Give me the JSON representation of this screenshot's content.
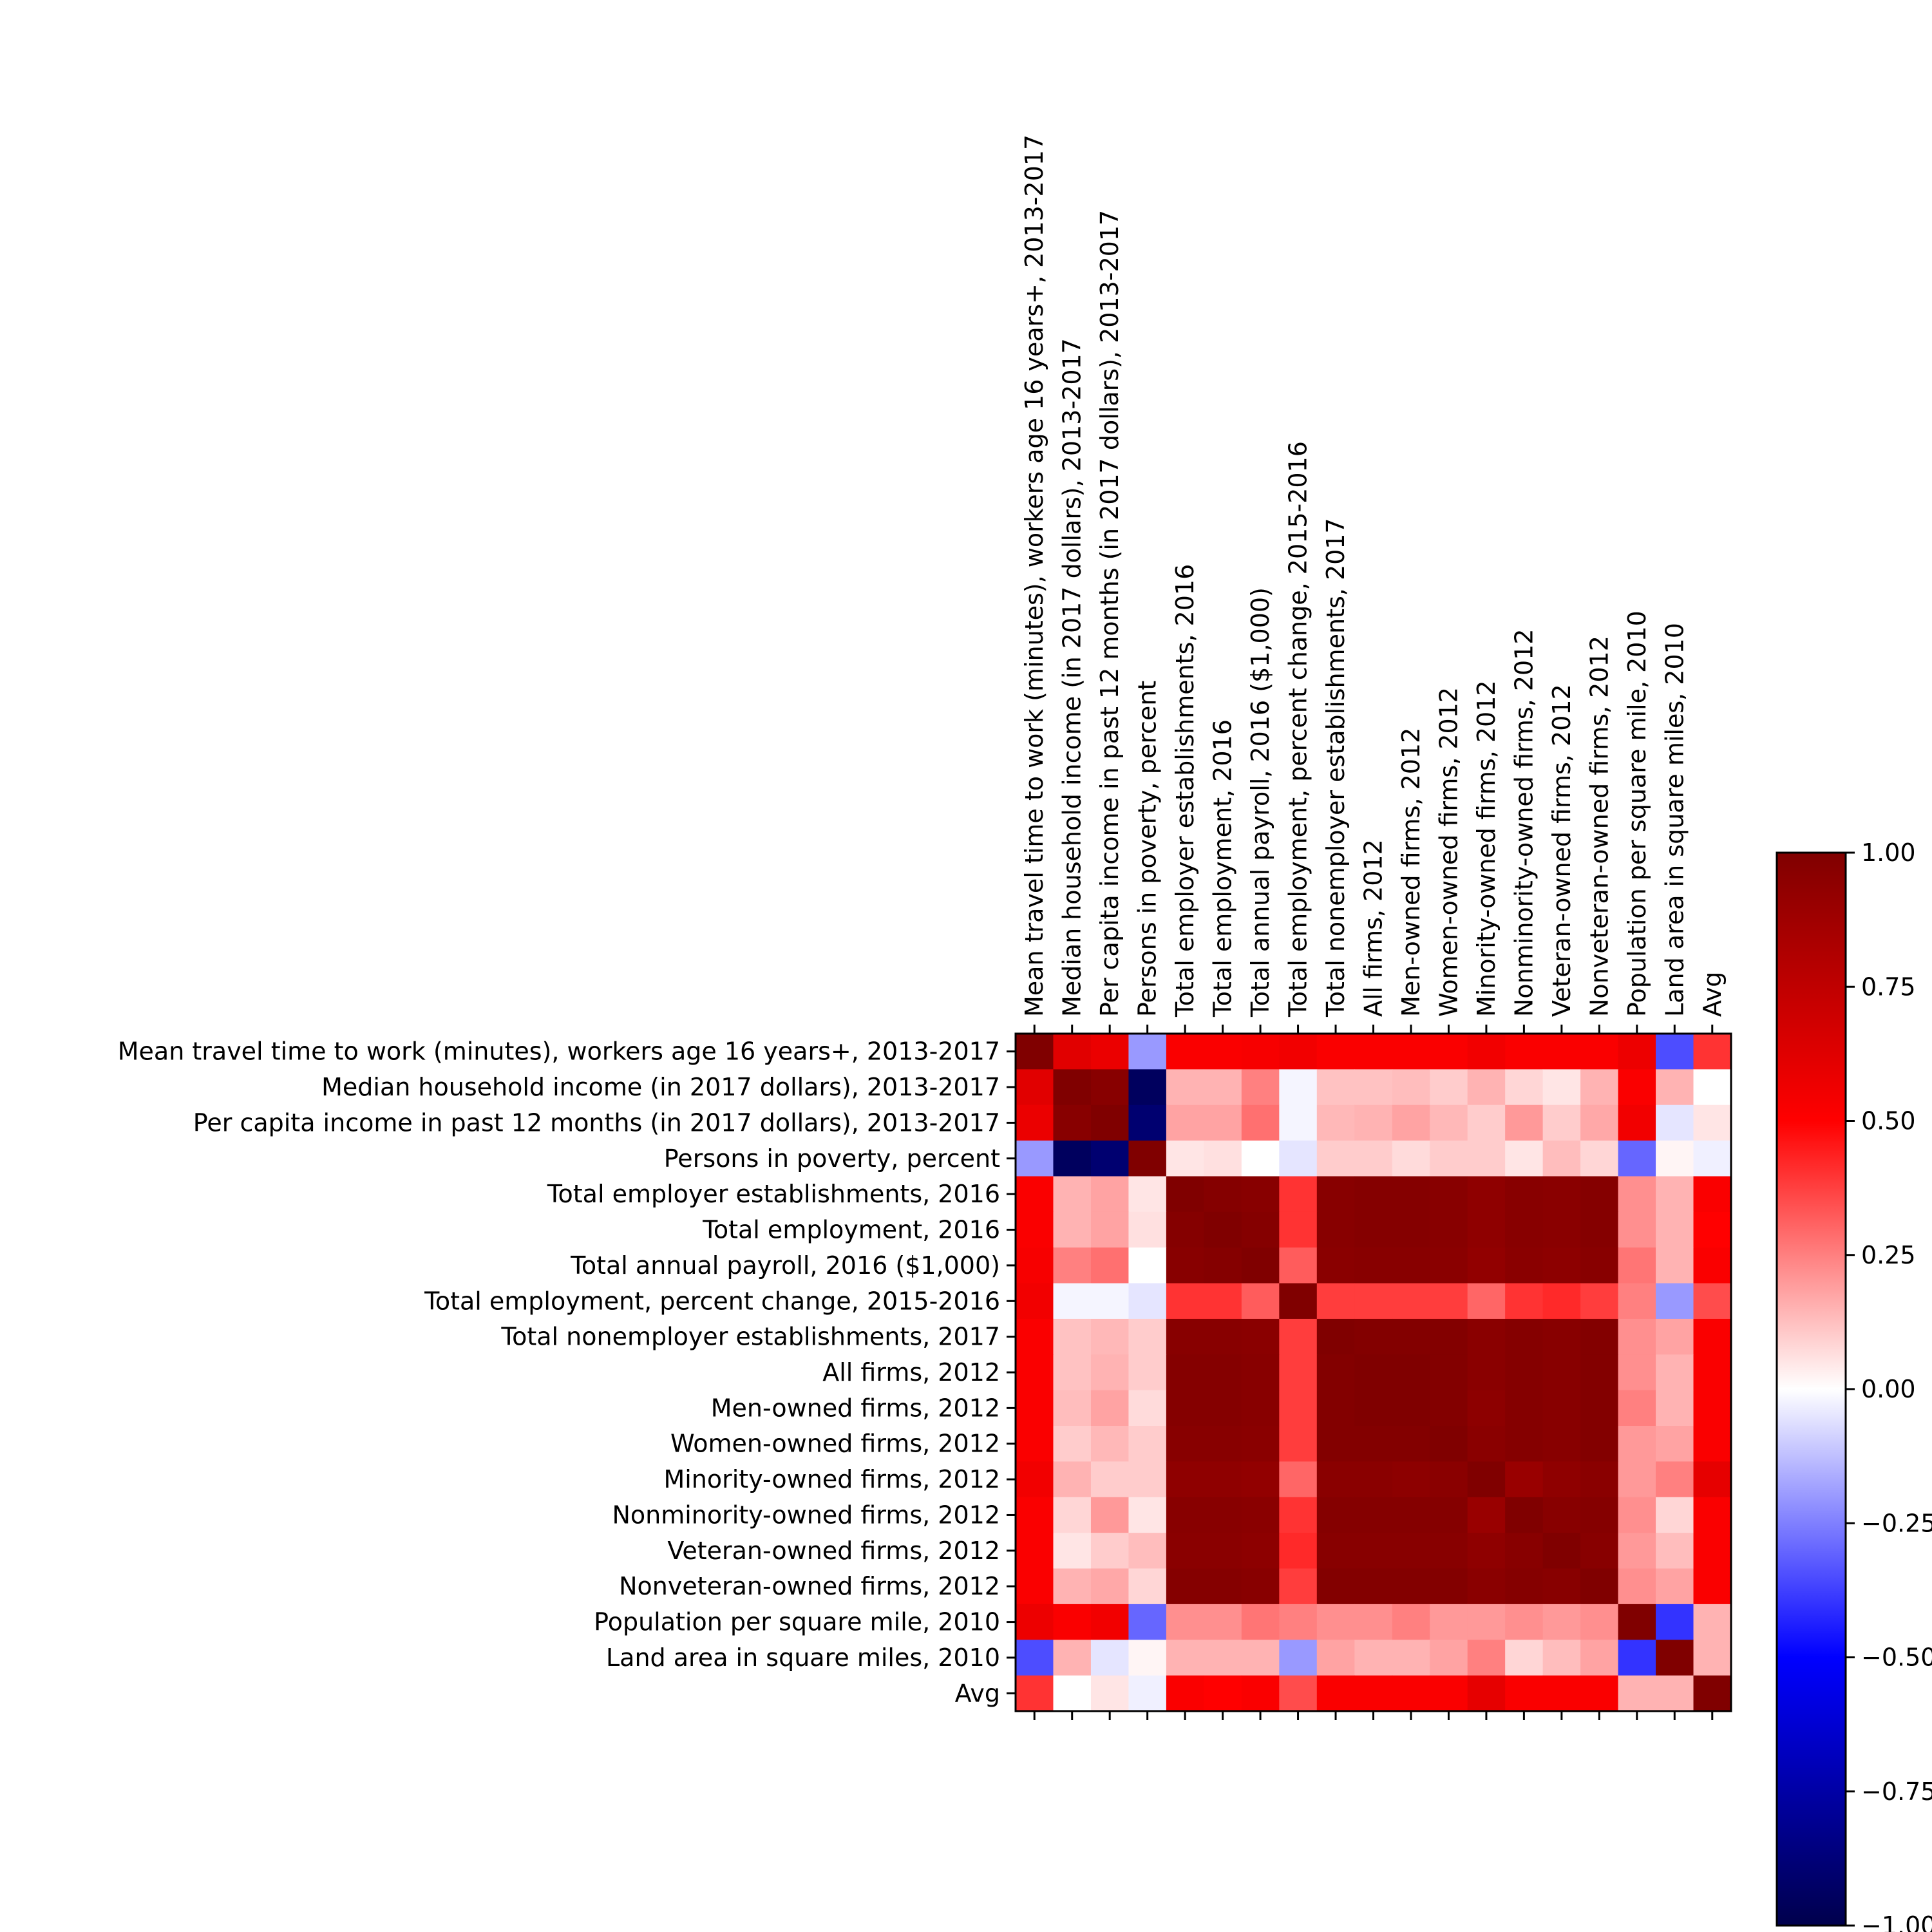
{
  "chart_data": {
    "type": "heatmap",
    "title": "",
    "xlabel": "",
    "ylabel": "",
    "labels": [
      "Mean travel time to work (minutes), workers age 16 years+, 2013-2017",
      "Median household income (in 2017 dollars), 2013-2017",
      "Per capita income in past 12 months (in 2017 dollars), 2013-2017",
      "Persons in poverty, percent",
      "Total employer establishments, 2016",
      "Total employment, 2016",
      "Total annual payroll, 2016 ($1,000)",
      "Total employment, percent change, 2015-2016",
      "Total nonemployer establishments, 2017",
      "All firms, 2012",
      "Men-owned firms, 2012",
      "Women-owned firms, 2012",
      "Minority-owned firms, 2012",
      "Nonminority-owned firms, 2012",
      "Veteran-owned firms, 2012",
      "Nonveteran-owned firms, 2012",
      "Population per square mile, 2010",
      "Land area in square miles, 2010",
      "Avg"
    ],
    "values": [
      [
        1.0,
        0.62,
        0.58,
        -0.2,
        0.52,
        0.52,
        0.53,
        0.55,
        0.52,
        0.52,
        0.52,
        0.52,
        0.55,
        0.52,
        0.52,
        0.52,
        0.57,
        -0.35,
        0.4
      ],
      [
        0.62,
        1.0,
        0.97,
        -0.95,
        0.15,
        0.15,
        0.25,
        -0.02,
        0.12,
        0.12,
        0.13,
        0.1,
        0.15,
        0.08,
        0.05,
        0.15,
        0.52,
        0.15,
        0.0
      ],
      [
        0.58,
        0.97,
        1.0,
        -0.9,
        0.18,
        0.18,
        0.28,
        -0.02,
        0.14,
        0.15,
        0.18,
        0.14,
        0.1,
        0.2,
        0.1,
        0.17,
        0.55,
        -0.05,
        0.05
      ],
      [
        -0.2,
        -0.95,
        -0.9,
        1.0,
        0.05,
        0.06,
        0.0,
        -0.05,
        0.1,
        0.1,
        0.07,
        0.1,
        0.1,
        0.05,
        0.13,
        0.08,
        -0.3,
        0.02,
        -0.03
      ],
      [
        0.52,
        0.15,
        0.18,
        0.05,
        1.0,
        0.98,
        0.97,
        0.4,
        0.97,
        0.98,
        0.98,
        0.97,
        0.94,
        0.97,
        0.96,
        0.98,
        0.22,
        0.15,
        0.52
      ],
      [
        0.52,
        0.15,
        0.18,
        0.06,
        0.98,
        1.0,
        0.98,
        0.4,
        0.97,
        0.98,
        0.98,
        0.97,
        0.94,
        0.97,
        0.96,
        0.98,
        0.22,
        0.15,
        0.5
      ],
      [
        0.53,
        0.25,
        0.28,
        0.0,
        0.97,
        0.98,
        1.0,
        0.32,
        0.96,
        0.97,
        0.97,
        0.96,
        0.93,
        0.96,
        0.95,
        0.97,
        0.27,
        0.15,
        0.52
      ],
      [
        0.55,
        -0.02,
        -0.02,
        -0.05,
        0.4,
        0.4,
        0.32,
        1.0,
        0.38,
        0.38,
        0.38,
        0.38,
        0.3,
        0.4,
        0.42,
        0.38,
        0.25,
        -0.2,
        0.35
      ],
      [
        0.52,
        0.12,
        0.14,
        0.1,
        0.97,
        0.97,
        0.96,
        0.38,
        1.0,
        0.99,
        0.99,
        0.99,
        0.96,
        0.98,
        0.97,
        0.99,
        0.22,
        0.18,
        0.52
      ],
      [
        0.52,
        0.12,
        0.15,
        0.1,
        0.98,
        0.98,
        0.97,
        0.38,
        0.99,
        1.0,
        1.0,
        0.99,
        0.96,
        0.98,
        0.97,
        0.99,
        0.22,
        0.15,
        0.52
      ],
      [
        0.52,
        0.13,
        0.18,
        0.07,
        0.98,
        0.98,
        0.97,
        0.38,
        0.99,
        1.0,
        1.0,
        0.99,
        0.95,
        0.98,
        0.97,
        0.99,
        0.25,
        0.15,
        0.52
      ],
      [
        0.52,
        0.1,
        0.14,
        0.1,
        0.97,
        0.97,
        0.96,
        0.38,
        0.99,
        0.99,
        0.99,
        1.0,
        0.96,
        0.98,
        0.97,
        0.99,
        0.2,
        0.18,
        0.52
      ],
      [
        0.55,
        0.15,
        0.1,
        0.1,
        0.94,
        0.94,
        0.93,
        0.3,
        0.96,
        0.96,
        0.95,
        0.96,
        1.0,
        0.9,
        0.94,
        0.96,
        0.2,
        0.25,
        0.6
      ],
      [
        0.52,
        0.08,
        0.2,
        0.05,
        0.97,
        0.97,
        0.96,
        0.4,
        0.98,
        0.98,
        0.98,
        0.98,
        0.9,
        1.0,
        0.97,
        0.98,
        0.22,
        0.08,
        0.52
      ],
      [
        0.52,
        0.05,
        0.1,
        0.13,
        0.96,
        0.96,
        0.95,
        0.42,
        0.97,
        0.97,
        0.97,
        0.97,
        0.94,
        0.97,
        1.0,
        0.97,
        0.2,
        0.13,
        0.52
      ],
      [
        0.52,
        0.15,
        0.17,
        0.08,
        0.98,
        0.98,
        0.97,
        0.38,
        0.99,
        0.99,
        0.99,
        0.99,
        0.96,
        0.98,
        0.97,
        1.0,
        0.22,
        0.18,
        0.52
      ],
      [
        0.57,
        0.52,
        0.55,
        -0.3,
        0.22,
        0.22,
        0.27,
        0.25,
        0.22,
        0.22,
        0.25,
        0.2,
        0.2,
        0.22,
        0.2,
        0.22,
        1.0,
        -0.4,
        0.15
      ],
      [
        -0.35,
        0.15,
        -0.05,
        0.02,
        0.15,
        0.15,
        0.15,
        -0.2,
        0.18,
        0.15,
        0.15,
        0.18,
        0.25,
        0.08,
        0.13,
        0.18,
        -0.4,
        1.0,
        0.15
      ],
      [
        0.4,
        0.0,
        0.05,
        -0.03,
        0.52,
        0.5,
        0.52,
        0.35,
        0.52,
        0.52,
        0.52,
        0.52,
        0.6,
        0.52,
        0.52,
        0.52,
        0.15,
        0.15,
        1.0
      ]
    ],
    "colormap": "seismic",
    "colorbar": {
      "range": [
        -1.0,
        1.0
      ],
      "ticks": [
        "1.00",
        "0.75",
        "0.50",
        "0.25",
        "0.00",
        "−0.25",
        "−0.50",
        "−0.75",
        "−1.00"
      ],
      "tick_values": [
        1.0,
        0.75,
        0.5,
        0.25,
        0.0,
        -0.25,
        -0.5,
        -0.75,
        -1.0
      ]
    },
    "grid": false,
    "legend": "colorbar-right"
  }
}
